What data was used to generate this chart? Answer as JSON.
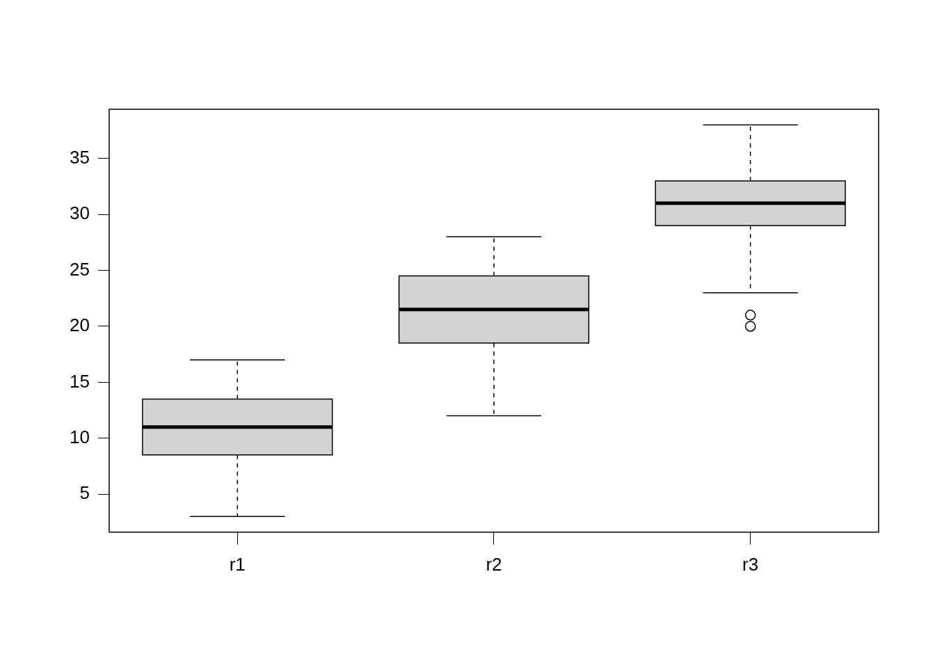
{
  "chart_data": {
    "type": "box",
    "categories": [
      "r1",
      "r2",
      "r3"
    ],
    "color": "#d3d3d3",
    "boxes": [
      {
        "low": 3,
        "q1": 8.5,
        "median": 11,
        "q3": 13.5,
        "high": 17
      },
      {
        "low": 12,
        "q1": 18.5,
        "median": 21.5,
        "q3": 24.5,
        "high": 28
      },
      {
        "low": 23,
        "q1": 29,
        "median": 31,
        "q3": 33,
        "high": 38,
        "outliers": [
          20,
          21
        ]
      }
    ],
    "ylim": [
      1.6,
      39.4
    ],
    "yticks": [
      5,
      10,
      15,
      20,
      25,
      30,
      35
    ]
  }
}
